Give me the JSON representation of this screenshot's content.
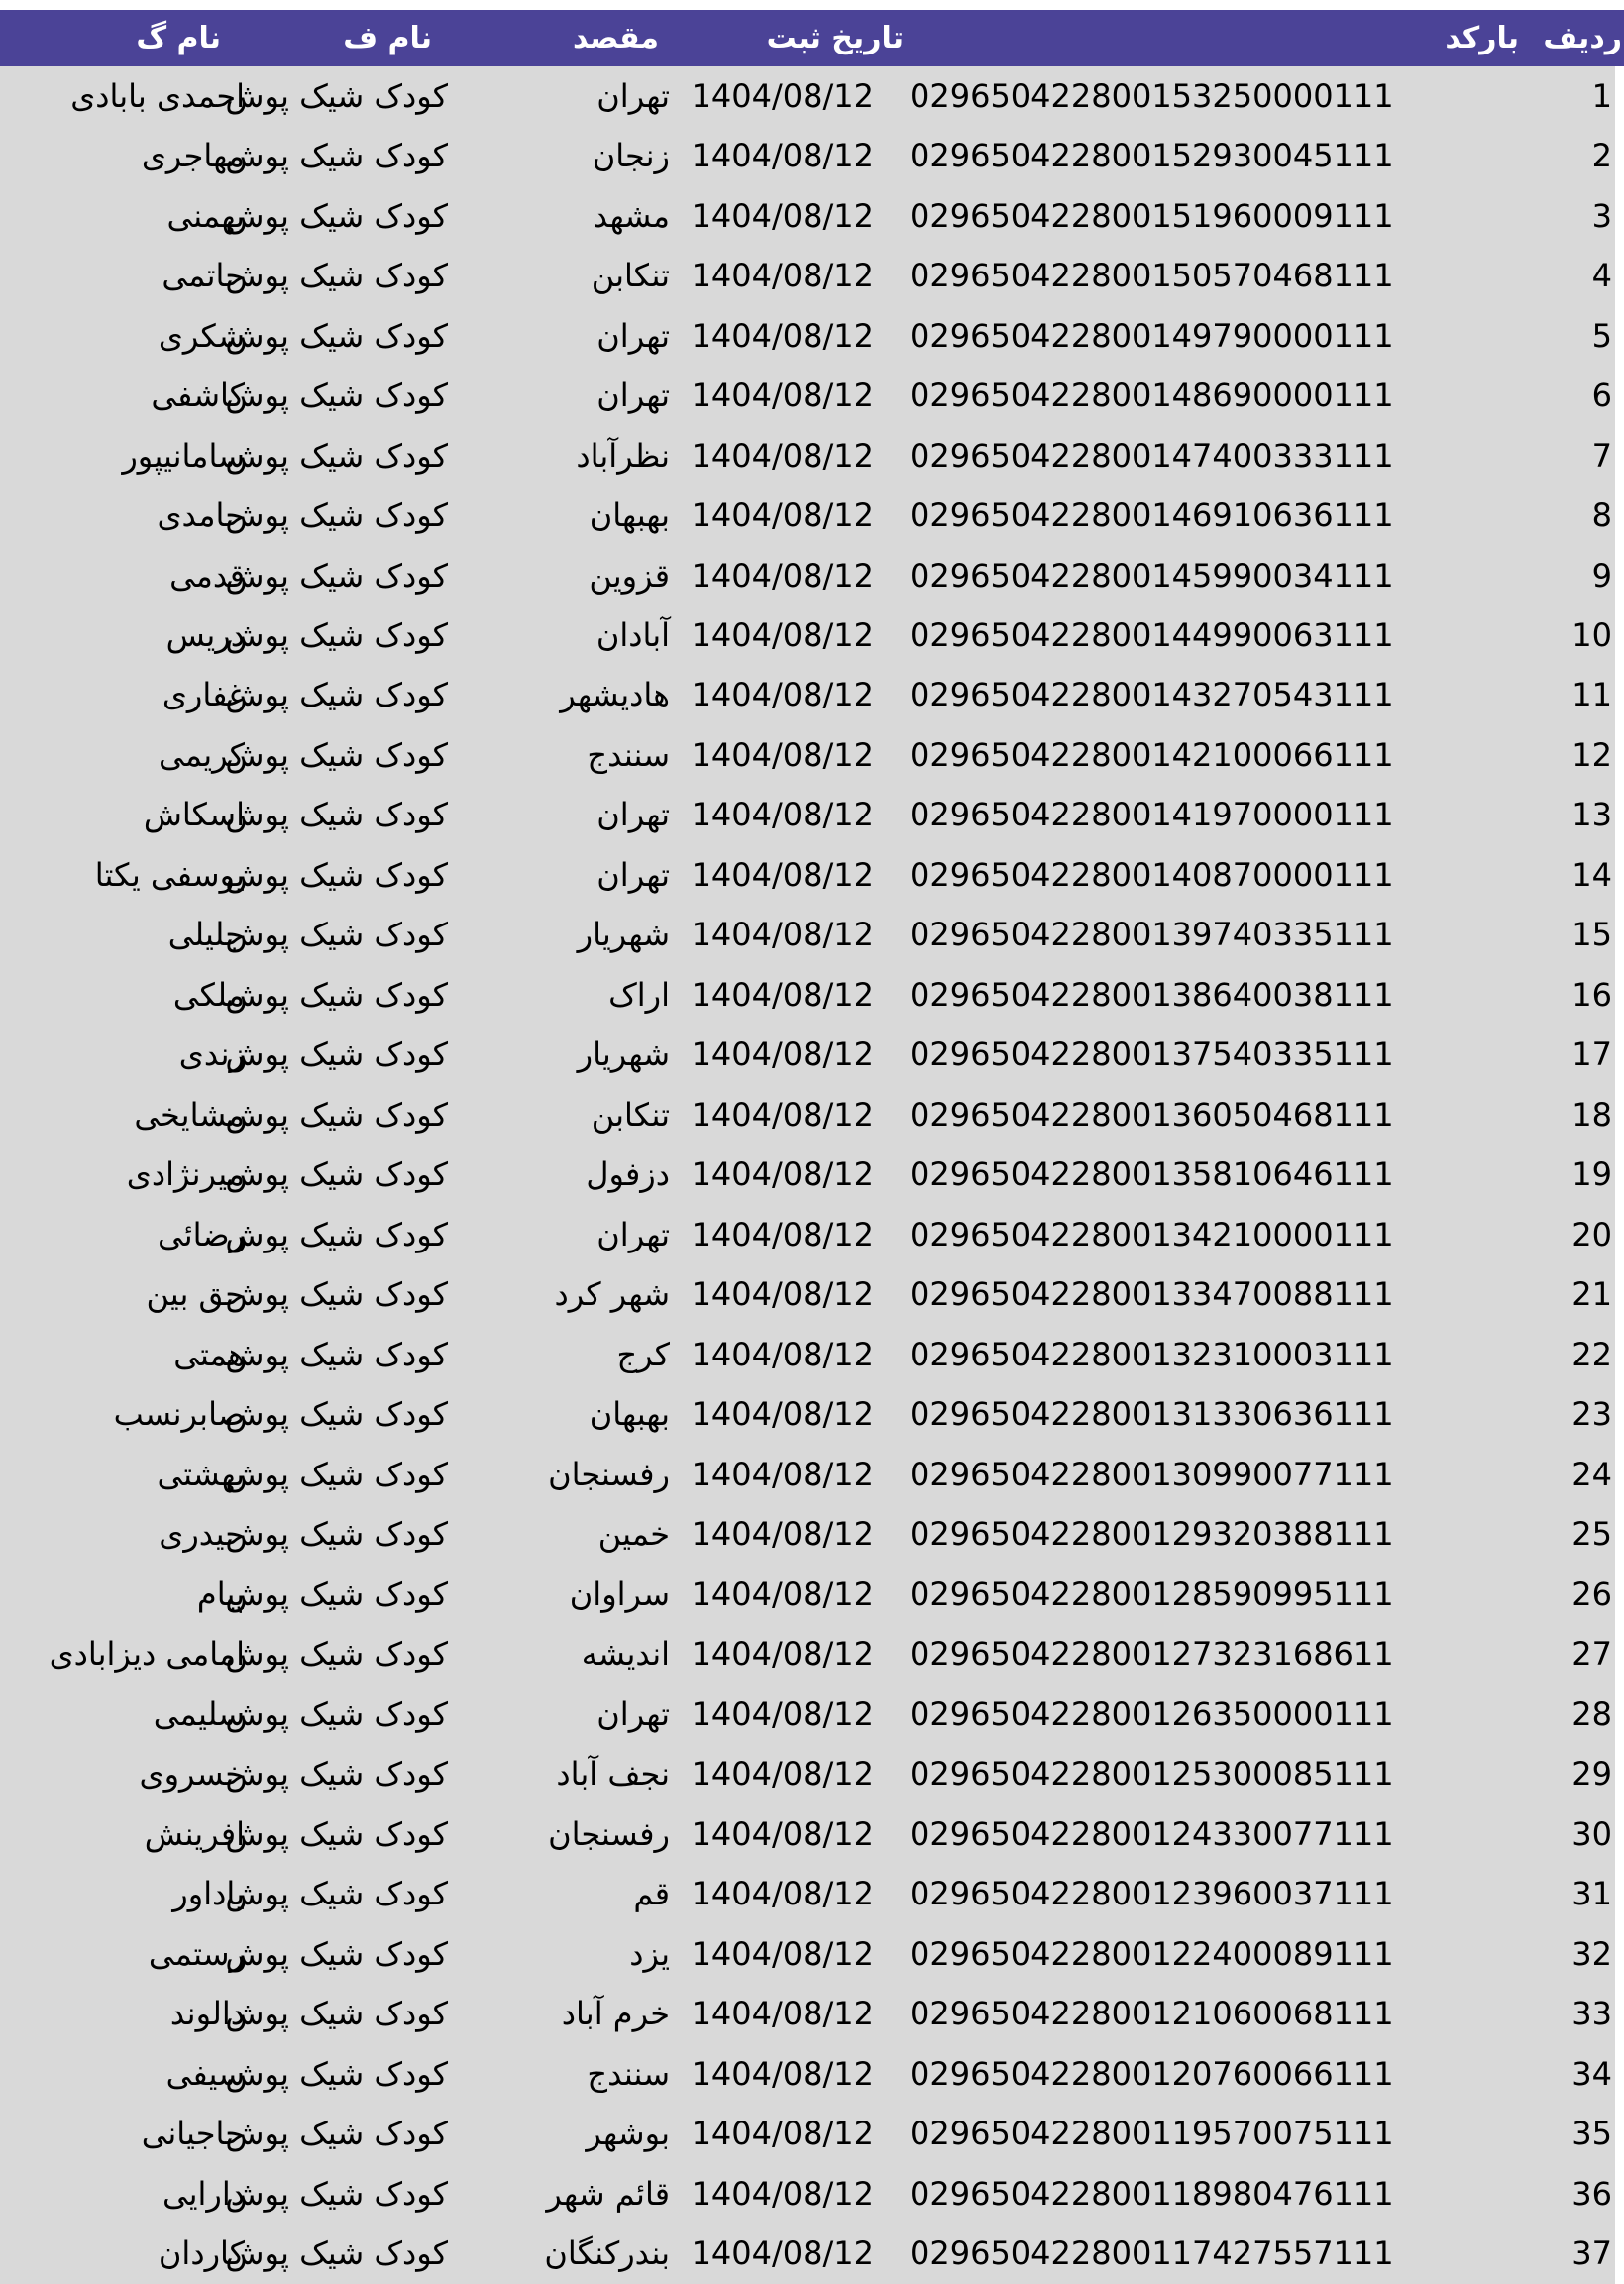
{
  "colors": {
    "header_bg": "#4b4397",
    "header_text": "#ffffff",
    "body_bg": "#d9d9d9",
    "body_text": "#000000"
  },
  "table": {
    "headers": {
      "radif": "ردیف",
      "barcode": "بارکد",
      "date": "تاریخ ثبت",
      "dest": "مقصد",
      "name_f": "نام ف",
      "name_g": "نام گ"
    },
    "rows": [
      {
        "radif": "1",
        "barcode": "029650422800153250000111",
        "date": "1404/08/12",
        "dest": "تهران",
        "name_f": "کودک شیک پوش",
        "name_g": "احمدی بابادی"
      },
      {
        "radif": "2",
        "barcode": "029650422800152930045111",
        "date": "1404/08/12",
        "dest": "زنجان",
        "name_f": "کودک شیک پوش",
        "name_g": "مهاجری"
      },
      {
        "radif": "3",
        "barcode": "029650422800151960009111",
        "date": "1404/08/12",
        "dest": "مشهد",
        "name_f": "کودک شیک پوش",
        "name_g": "بهمنی"
      },
      {
        "radif": "4",
        "barcode": "029650422800150570468111",
        "date": "1404/08/12",
        "dest": "تنکابن",
        "name_f": "کودک شیک پوش",
        "name_g": "حاتمی"
      },
      {
        "radif": "5",
        "barcode": "029650422800149790000111",
        "date": "1404/08/12",
        "dest": "تهران",
        "name_f": "کودک شیک پوش",
        "name_g": "شکری"
      },
      {
        "radif": "6",
        "barcode": "029650422800148690000111",
        "date": "1404/08/12",
        "dest": "تهران",
        "name_f": "کودک شیک پوش",
        "name_g": "کاشفی"
      },
      {
        "radif": "7",
        "barcode": "029650422800147400333111",
        "date": "1404/08/12",
        "dest": "نظرآباد",
        "name_f": "کودک شیک پوش",
        "name_g": "سامانیپور"
      },
      {
        "radif": "8",
        "barcode": "029650422800146910636111",
        "date": "1404/08/12",
        "dest": "بهبهان",
        "name_f": "کودک شیک پوش",
        "name_g": "حامدی"
      },
      {
        "radif": "9",
        "barcode": "029650422800145990034111",
        "date": "1404/08/12",
        "dest": "قزوین",
        "name_f": "کودک شیک پوش",
        "name_g": "قدمی"
      },
      {
        "radif": "10",
        "barcode": "029650422800144990063111",
        "date": "1404/08/12",
        "dest": "آبادان",
        "name_f": "کودک شیک پوش",
        "name_g": "دریس"
      },
      {
        "radif": "11",
        "barcode": "029650422800143270543111",
        "date": "1404/08/12",
        "dest": "هادیشهر",
        "name_f": "کودک شیک پوش",
        "name_g": "غفاری"
      },
      {
        "radif": "12",
        "barcode": "029650422800142100066111",
        "date": "1404/08/12",
        "dest": "سنندج",
        "name_f": "کودک شیک پوش",
        "name_g": "کریمی"
      },
      {
        "radif": "13",
        "barcode": "029650422800141970000111",
        "date": "1404/08/12",
        "dest": "تهران",
        "name_f": "کودک شیک پوش",
        "name_g": "اسکاش"
      },
      {
        "radif": "14",
        "barcode": "029650422800140870000111",
        "date": "1404/08/12",
        "dest": "تهران",
        "name_f": "کودک شیک پوش",
        "name_g": "یوسفی یکتا"
      },
      {
        "radif": "15",
        "barcode": "029650422800139740335111",
        "date": "1404/08/12",
        "dest": "شهریار",
        "name_f": "کودک شیک پوش",
        "name_g": "جلیلی"
      },
      {
        "radif": "16",
        "barcode": "029650422800138640038111",
        "date": "1404/08/12",
        "dest": "اراک",
        "name_f": "کودک شیک پوش",
        "name_g": "ملکی"
      },
      {
        "radif": "17",
        "barcode": "029650422800137540335111",
        "date": "1404/08/12",
        "dest": "شهریار",
        "name_f": "کودک شیک پوش",
        "name_g": "زندی"
      },
      {
        "radif": "18",
        "barcode": "029650422800136050468111",
        "date": "1404/08/12",
        "dest": "تنکابن",
        "name_f": "کودک شیک پوش",
        "name_g": "مشایخی"
      },
      {
        "radif": "19",
        "barcode": "029650422800135810646111",
        "date": "1404/08/12",
        "dest": "دزفول",
        "name_f": "کودک شیک پوش",
        "name_g": "میرنژادی"
      },
      {
        "radif": "20",
        "barcode": "029650422800134210000111",
        "date": "1404/08/12",
        "dest": "تهران",
        "name_f": "کودک شیک پوش",
        "name_g": "رضائی"
      },
      {
        "radif": "21",
        "barcode": "029650422800133470088111",
        "date": "1404/08/12",
        "dest": "شهر کرد",
        "name_f": "کودک شیک پوش",
        "name_g": "حق بین"
      },
      {
        "radif": "22",
        "barcode": "029650422800132310003111",
        "date": "1404/08/12",
        "dest": "کرج",
        "name_f": "کودک شیک پوش",
        "name_g": "همتی"
      },
      {
        "radif": "23",
        "barcode": "029650422800131330636111",
        "date": "1404/08/12",
        "dest": "بهبهان",
        "name_f": "کودک شیک پوش",
        "name_g": "صابرنسب"
      },
      {
        "radif": "24",
        "barcode": "029650422800130990077111",
        "date": "1404/08/12",
        "dest": "رفسنجان",
        "name_f": "کودک شیک پوش",
        "name_g": "بهشتی"
      },
      {
        "radif": "25",
        "barcode": "029650422800129320388111",
        "date": "1404/08/12",
        "dest": "خمین",
        "name_f": "کودک شیک پوش",
        "name_g": "حیدری"
      },
      {
        "radif": "26",
        "barcode": "029650422800128590995111",
        "date": "1404/08/12",
        "dest": "سراوان",
        "name_f": "کودک شیک پوش",
        "name_g": "پیام"
      },
      {
        "radif": "27",
        "barcode": "029650422800127323168611",
        "date": "1404/08/12",
        "dest": "اندیشه",
        "name_f": "کودک شیک پوش",
        "name_g": "امامی دیزابادی"
      },
      {
        "radif": "28",
        "barcode": "029650422800126350000111",
        "date": "1404/08/12",
        "dest": "تهران",
        "name_f": "کودک شیک پوش",
        "name_g": "سلیمی"
      },
      {
        "radif": "29",
        "barcode": "029650422800125300085111",
        "date": "1404/08/12",
        "dest": "نجف آباد",
        "name_f": "کودک شیک پوش",
        "name_g": "خسروی"
      },
      {
        "radif": "30",
        "barcode": "029650422800124330077111",
        "date": "1404/08/12",
        "dest": "رفسنجان",
        "name_f": "کودک شیک پوش",
        "name_g": "افرینش"
      },
      {
        "radif": "31",
        "barcode": "029650422800123960037111",
        "date": "1404/08/12",
        "dest": "قم",
        "name_f": "کودک شیک پوش",
        "name_g": "یاداور"
      },
      {
        "radif": "32",
        "barcode": "029650422800122400089111",
        "date": "1404/08/12",
        "dest": "یزد",
        "name_f": "کودک شیک پوش",
        "name_g": "رستمی"
      },
      {
        "radif": "33",
        "barcode": "029650422800121060068111",
        "date": "1404/08/12",
        "dest": "خرم آباد",
        "name_f": "کودک شیک پوش",
        "name_g": "دالوند"
      },
      {
        "radif": "34",
        "barcode": "029650422800120760066111",
        "date": "1404/08/12",
        "dest": "سنندج",
        "name_f": "کودک شیک پوش",
        "name_g": "سیفی"
      },
      {
        "radif": "35",
        "barcode": "029650422800119570075111",
        "date": "1404/08/12",
        "dest": "بوشهر",
        "name_f": "کودک شیک پوش",
        "name_g": "حاجیانی"
      },
      {
        "radif": "36",
        "barcode": "029650422800118980476111",
        "date": "1404/08/12",
        "dest": "قائم شهر",
        "name_f": "کودک شیک پوش",
        "name_g": "دارایی"
      },
      {
        "radif": "37",
        "barcode": "029650422800117427557111",
        "date": "1404/08/12",
        "dest": "بندرکنگان",
        "name_f": "کودک شیک پوش",
        "name_g": "کاردان"
      }
    ]
  }
}
